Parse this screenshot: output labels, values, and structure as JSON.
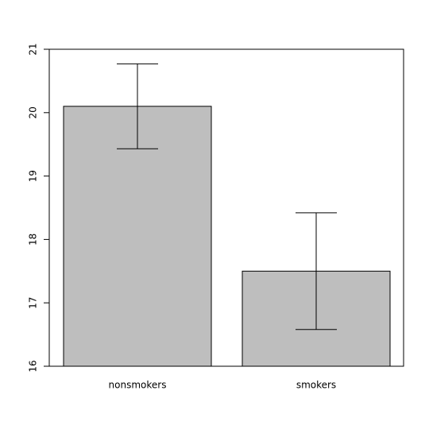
{
  "chart_data": {
    "type": "bar",
    "categories": [
      "nonsmokers",
      "smokers"
    ],
    "values": [
      20.1,
      17.5
    ],
    "errors": [
      0.67,
      0.92
    ],
    "color": "#bebebe",
    "ylim": [
      16,
      21
    ],
    "yticks": [
      16,
      17,
      18,
      19,
      20,
      21
    ],
    "grid": false
  }
}
